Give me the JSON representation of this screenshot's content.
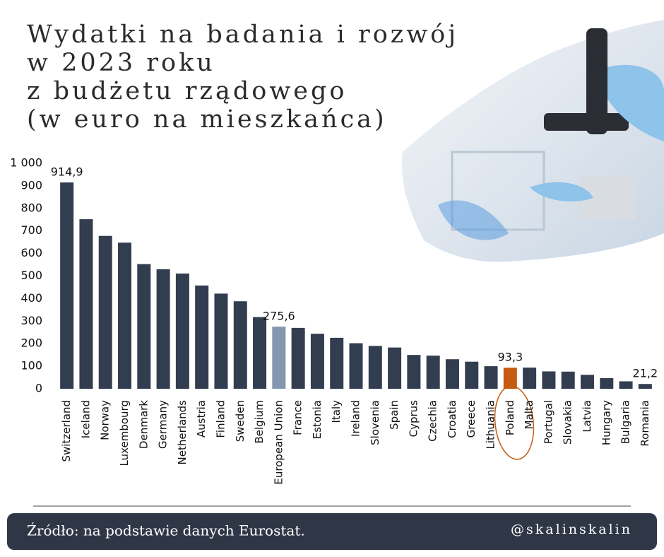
{
  "chart_data": {
    "type": "bar",
    "title": [
      "Wydatki na badania i rozwój",
      "w 2023 roku",
      "z budżetu rządowego",
      "(w euro na mieszkańca)"
    ],
    "categories": [
      "Switzerland",
      "Iceland",
      "Norway",
      "Luxembourg",
      "Denmark",
      "Germany",
      "Netherlands",
      "Austria",
      "Finland",
      "Sweden",
      "Belgium",
      "European Union",
      "France",
      "Estonia",
      "Italy",
      "Ireland",
      "Slovenia",
      "Spain",
      "Cyprus",
      "Czechia",
      "Croatia",
      "Greece",
      "Lithuania",
      "Poland",
      "Malta",
      "Portugal",
      "Slovakia",
      "Latvia",
      "Hungary",
      "Bulgaria",
      "Romania"
    ],
    "values": [
      914.9,
      752,
      678,
      648,
      553,
      530,
      511,
      458,
      422,
      388,
      318,
      275.6,
      270,
      244,
      226,
      202,
      190,
      183,
      150,
      147,
      131,
      120,
      100,
      93.3,
      94,
      77,
      76,
      62,
      47,
      33,
      21.2
    ],
    "value_labels": [
      "914,9",
      null,
      null,
      null,
      null,
      null,
      null,
      null,
      null,
      null,
      null,
      "275,6",
      null,
      null,
      null,
      null,
      null,
      null,
      null,
      null,
      null,
      null,
      null,
      "93,3",
      null,
      null,
      null,
      null,
      null,
      null,
      "21,2"
    ],
    "colors": [
      "#333d50",
      "#333d50",
      "#333d50",
      "#333d50",
      "#333d50",
      "#333d50",
      "#333d50",
      "#333d50",
      "#333d50",
      "#333d50",
      "#333d50",
      "#8497b0",
      "#333d50",
      "#333d50",
      "#333d50",
      "#333d50",
      "#333d50",
      "#333d50",
      "#333d50",
      "#333d50",
      "#333d50",
      "#333d50",
      "#333d50",
      "#c55a11",
      "#333d50",
      "#333d50",
      "#333d50",
      "#333d50",
      "#333d50",
      "#333d50",
      "#333d50"
    ],
    "ylim": [
      0,
      1000
    ],
    "yticks": [
      0,
      100,
      200,
      300,
      400,
      500,
      600,
      700,
      800,
      900,
      {
        "value": 1000,
        "label": "1 000"
      }
    ],
    "grid": false,
    "source": "Źródło: na podstawie danych Eurostat.",
    "handle": "@skalinskalin"
  }
}
